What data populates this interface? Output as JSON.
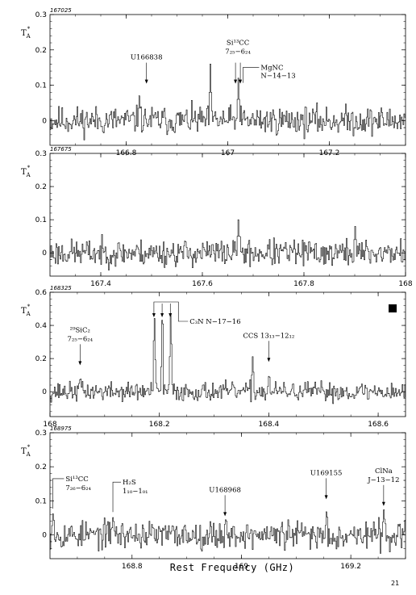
{
  "page": {
    "x_axis_label": "Rest Frequency (GHz)",
    "page_number": "21"
  },
  "chart_data": [
    {
      "type": "line",
      "panel_id": "167025",
      "ylabel": "T",
      "ylabel_sub": "A",
      "ylabel_sup": "*",
      "xlim": [
        166.65,
        167.35
      ],
      "ylim": [
        -0.07,
        0.3
      ],
      "xticks": [
        {
          "v": 166.8,
          "label": "166.8"
        },
        {
          "v": 167,
          "label": "167"
        },
        {
          "v": 167.2,
          "label": "167.2"
        }
      ],
      "yticks": [
        {
          "v": 0,
          "label": "0"
        },
        {
          "v": 0.1,
          "label": "0.1"
        },
        {
          "v": 0.2,
          "label": "0.2"
        },
        {
          "v": 0.3,
          "label": "0.3"
        }
      ],
      "noise_sigma": 0.025,
      "spikes": [
        {
          "x": 166.965,
          "y": 0.16
        },
        {
          "x": 167.02,
          "y": 0.12
        },
        {
          "x": 166.825,
          "y": 0.07
        }
      ],
      "annotations": [
        {
          "x": 166.84,
          "y": 0.1,
          "lines": [
            "U166838"
          ],
          "kind": "arrow"
        },
        {
          "x": 167.02,
          "y": 0.1,
          "lines": [
            "Si¹³CC",
            "7₂₅−6₂₄"
          ],
          "kind": "double"
        },
        {
          "x": 167.03,
          "y": 0.1,
          "lines": [
            "MgNC",
            "N−14−13"
          ],
          "kind": "bracket"
        }
      ],
      "seed": 11
    },
    {
      "type": "line",
      "panel_id": "167675",
      "ylabel": "T",
      "ylabel_sub": "A",
      "ylabel_sup": "*",
      "xlim": [
        167.3,
        168.0
      ],
      "ylim": [
        -0.07,
        0.3
      ],
      "xticks": [
        {
          "v": 167.4,
          "label": "167.4"
        },
        {
          "v": 167.6,
          "label": "167.6"
        },
        {
          "v": 167.8,
          "label": "167.8"
        },
        {
          "v": 168,
          "label": "168"
        }
      ],
      "yticks": [
        {
          "v": 0,
          "label": "0"
        },
        {
          "v": 0.1,
          "label": "0.1"
        },
        {
          "v": 0.2,
          "label": "0.2"
        },
        {
          "v": 0.3,
          "label": "0.3"
        }
      ],
      "noise_sigma": 0.025,
      "spikes": [
        {
          "x": 167.67,
          "y": 0.1
        },
        {
          "x": 167.9,
          "y": 0.08
        }
      ],
      "annotations": [],
      "seed": 23
    },
    {
      "type": "line",
      "panel_id": "168325",
      "ylabel": "T",
      "ylabel_sub": "A",
      "ylabel_sup": "*",
      "xlim": [
        168.0,
        168.65
      ],
      "ylim": [
        -0.15,
        0.6
      ],
      "xticks": [
        {
          "v": 168,
          "label": "168"
        },
        {
          "v": 168.2,
          "label": "168.2"
        },
        {
          "v": 168.4,
          "label": "168.4"
        },
        {
          "v": 168.6,
          "label": "168.6"
        }
      ],
      "yticks": [
        {
          "v": 0,
          "label": "0"
        },
        {
          "v": 0.2,
          "label": "0.2"
        },
        {
          "v": 0.4,
          "label": "0.4"
        },
        {
          "v": 0.6,
          "label": "0.6"
        }
      ],
      "noise_sigma": 0.035,
      "spikes": [
        {
          "x": 168.19,
          "y": 0.5
        },
        {
          "x": 168.205,
          "y": 0.56
        },
        {
          "x": 168.22,
          "y": 0.5
        },
        {
          "x": 168.37,
          "y": 0.22
        },
        {
          "x": 168.055,
          "y": 0.1
        },
        {
          "x": 168.4,
          "y": 0.12
        }
      ],
      "annotations": [
        {
          "x": 168.055,
          "y": 0.15,
          "lines": [
            "²⁹SiC₂",
            "7₂₅−6₂₄"
          ],
          "kind": "arrow"
        },
        {
          "x": 168.2,
          "y": 0.55,
          "lines": [
            "C₃N N−17−16"
          ],
          "kind": "triple"
        },
        {
          "x": 168.4,
          "y": 0.17,
          "lines": [
            "CCS 13₁₃−12₁₂"
          ],
          "kind": "arrow"
        }
      ],
      "marker": "black-square",
      "seed": 37
    },
    {
      "type": "line",
      "panel_id": "168975",
      "ylabel": "T",
      "ylabel_sub": "A",
      "ylabel_sup": "*",
      "xlim": [
        168.65,
        169.3
      ],
      "ylim": [
        -0.07,
        0.3
      ],
      "xticks": [
        {
          "v": 168.8,
          "label": "168.8"
        },
        {
          "v": 169,
          "label": "169"
        },
        {
          "v": 169.2,
          "label": "169.2"
        }
      ],
      "yticks": [
        {
          "v": 0,
          "label": "0"
        },
        {
          "v": 0.1,
          "label": "0.1"
        },
        {
          "v": 0.2,
          "label": "0.2"
        },
        {
          "v": 0.3,
          "label": "0.3"
        }
      ],
      "noise_sigma": 0.025,
      "spikes": [
        {
          "x": 168.655,
          "y": 0.07
        },
        {
          "x": 168.765,
          "y": 0.06
        },
        {
          "x": 168.97,
          "y": 0.05
        },
        {
          "x": 169.155,
          "y": 0.08
        },
        {
          "x": 169.26,
          "y": 0.08
        }
      ],
      "annotations": [
        {
          "x": 168.655,
          "y": 0.07,
          "lines": [
            "Si¹³CC",
            "7₂₆−6₂₄"
          ],
          "kind": "bracket-left"
        },
        {
          "x": 168.765,
          "y": 0.06,
          "lines": [
            "H₂S",
            "1₁₀−1₀₁"
          ],
          "kind": "bracket-left"
        },
        {
          "x": 168.97,
          "y": 0.05,
          "lines": [
            "U168968"
          ],
          "kind": "arrow"
        },
        {
          "x": 169.155,
          "y": 0.1,
          "lines": [
            "U169155"
          ],
          "kind": "arrow"
        },
        {
          "x": 169.26,
          "y": 0.08,
          "lines": [
            "ClNa",
            "J−13−12"
          ],
          "kind": "arrow"
        }
      ],
      "seed": 53
    }
  ]
}
